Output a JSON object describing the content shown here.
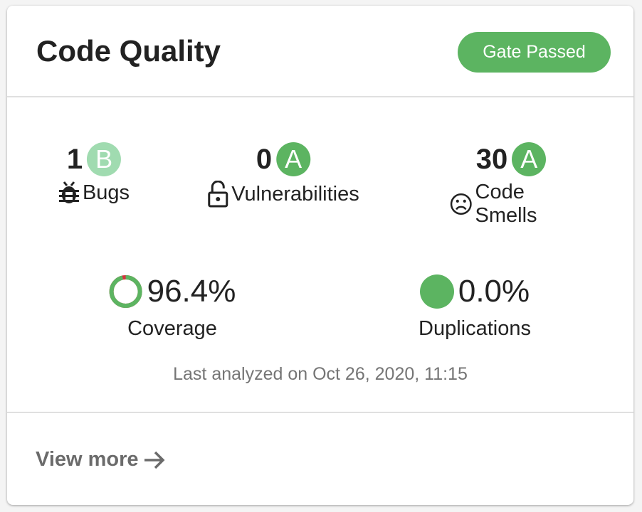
{
  "header": {
    "title": "Code Quality",
    "gate_status": "Gate Passed",
    "gate_color": "#5cb461"
  },
  "metrics": [
    {
      "value": "1",
      "grade": "B",
      "grade_color": "#a0dbb0",
      "label": "Bugs",
      "icon": "bug-icon"
    },
    {
      "value": "0",
      "grade": "A",
      "grade_color": "#5cb461",
      "label": "Vulnerabilities",
      "icon": "unlocked-padlock-icon"
    },
    {
      "value": "30",
      "grade": "A",
      "grade_color": "#5cb461",
      "label": "Code Smells",
      "icon": "sad-face-icon"
    }
  ],
  "coverage": {
    "value": "96.4%",
    "percent": 96.4,
    "label": "Coverage",
    "covered_color": "#5cb461",
    "uncovered_color": "#d4333f"
  },
  "duplications": {
    "value": "0.0%",
    "percent": 0.0,
    "label": "Duplications",
    "color": "#5cb461"
  },
  "last_analyzed": "Last analyzed on Oct 26, 2020, 11:15",
  "footer": {
    "view_more": "View more",
    "arrow_icon": "arrow-right-icon"
  }
}
